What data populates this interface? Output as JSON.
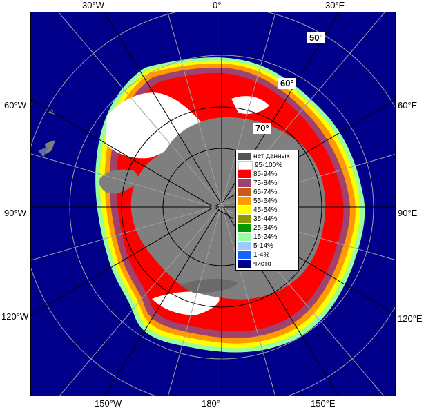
{
  "map": {
    "longitude_labels": {
      "top": [
        "30°W",
        "0°",
        "30°E"
      ],
      "bottom": [
        "150°W",
        "180°",
        "150°E"
      ],
      "left": [
        "60°W",
        "90°W",
        "120°W"
      ],
      "right": [
        "60°E",
        "90°E",
        "120°E"
      ]
    },
    "latitude_labels": [
      "50°",
      "60°",
      "70°"
    ],
    "colors": {
      "ocean_clear": "#00008b",
      "land": "#7f7f7f",
      "no_data": "#555555",
      "grid": "#a0a0a0"
    }
  },
  "legend": {
    "items": [
      {
        "label": "нет данных",
        "color": "#555555"
      },
      {
        "label": "95-100%",
        "color": "#ffffff"
      },
      {
        "label": "85-94%",
        "color": "#ff0000"
      },
      {
        "label": "75-84%",
        "color": "#a0426e"
      },
      {
        "label": "65-74%",
        "color": "#cc5a14"
      },
      {
        "label": "55-64%",
        "color": "#ff9a00"
      },
      {
        "label": "45-54%",
        "color": "#ffff00"
      },
      {
        "label": "35-44%",
        "color": "#8c9a00"
      },
      {
        "label": "25-34%",
        "color": "#009a00"
      },
      {
        "label": "15-24%",
        "color": "#96ffa0"
      },
      {
        "label": "5-14%",
        "color": "#a0c8ff"
      },
      {
        "label": "1-4%",
        "color": "#1464ff"
      },
      {
        "label": "чисто",
        "color": "#00008b"
      }
    ]
  }
}
